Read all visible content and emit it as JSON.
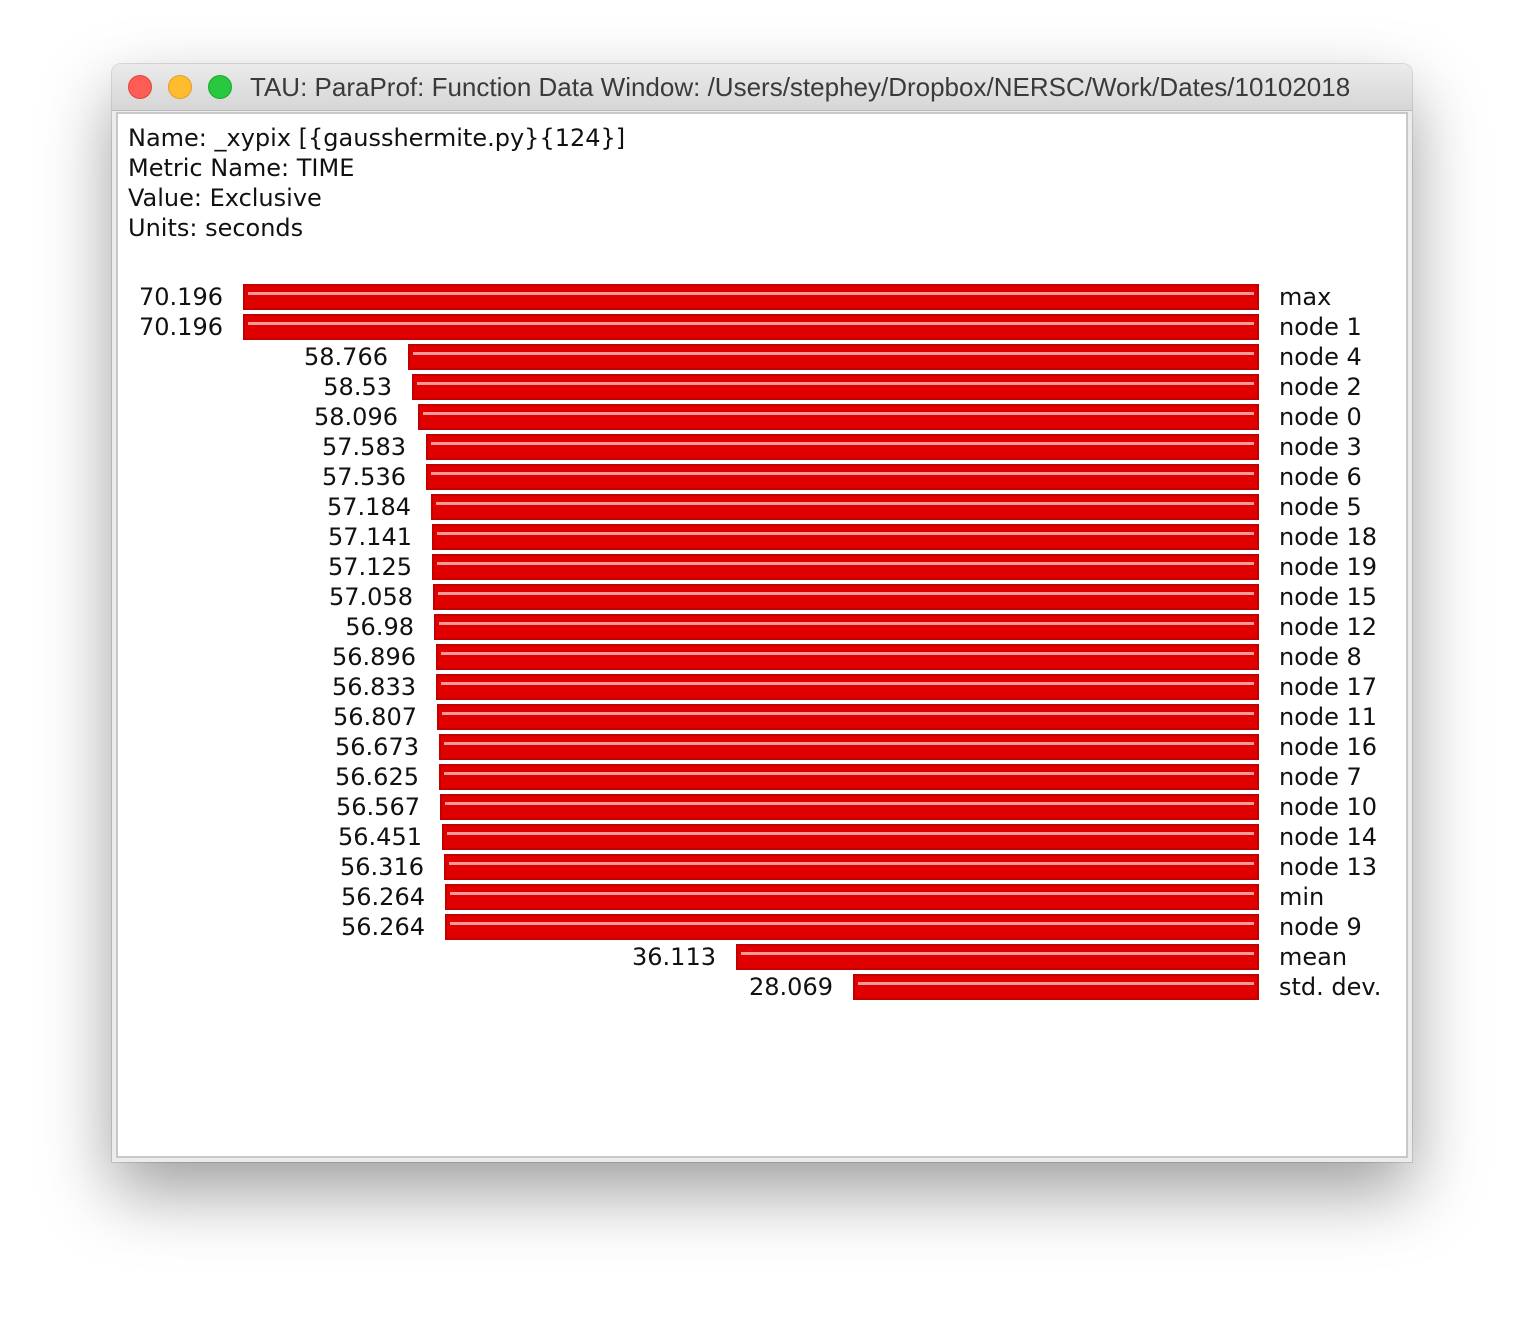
{
  "window": {
    "title": "TAU: ParaProf: Function Data Window: /Users/stephey/Dropbox/NERSC/Work/Dates/10102018"
  },
  "info": {
    "name": "Name: _xypix [{gausshermite.py}{124}]",
    "metric": "Metric Name: TIME",
    "value": "Value: Exclusive",
    "units": "Units: seconds"
  },
  "colors": {
    "bar": "#e00000",
    "bar_highlight": "#f29a9a"
  },
  "chart_data": {
    "type": "bar",
    "orientation": "horizontal",
    "categories": [
      "max",
      "node 1",
      "node 4",
      "node 2",
      "node 0",
      "node 3",
      "node 6",
      "node 5",
      "node 18",
      "node 19",
      "node 15",
      "node 12",
      "node 8",
      "node 17",
      "node 11",
      "node 16",
      "node 7",
      "node 10",
      "node 14",
      "node 13",
      "min",
      "node 9",
      "mean",
      "std. dev."
    ],
    "value_labels": [
      "70.196",
      "70.196",
      "58.766",
      "58.53",
      "58.096",
      "57.583",
      "57.536",
      "57.184",
      "57.141",
      "57.125",
      "57.058",
      "56.98",
      "56.896",
      "56.833",
      "56.807",
      "56.673",
      "56.625",
      "56.567",
      "56.451",
      "56.316",
      "56.264",
      "56.264",
      "36.113",
      "28.069"
    ],
    "values": [
      70.196,
      70.196,
      58.766,
      58.53,
      58.096,
      57.583,
      57.536,
      57.184,
      57.141,
      57.125,
      57.058,
      56.98,
      56.896,
      56.833,
      56.807,
      56.673,
      56.625,
      56.567,
      56.451,
      56.316,
      56.264,
      56.264,
      36.113,
      28.069
    ],
    "xlim": [
      0,
      70.196
    ]
  }
}
